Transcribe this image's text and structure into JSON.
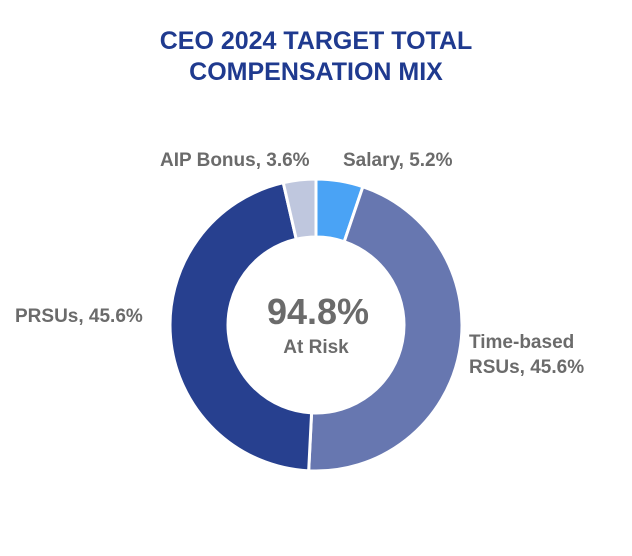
{
  "title": {
    "line1": "CEO 2024 TARGET TOTAL",
    "line2": "COMPENSATION MIX"
  },
  "center": {
    "value": "94.8%",
    "label": "At Risk"
  },
  "colors": {
    "title": "#1f3a8f",
    "label": "#6b6b6b"
  },
  "chart_data": {
    "type": "pie",
    "donut": true,
    "title": "CEO 2024 TARGET TOTAL COMPENSATION MIX",
    "categories": [
      "Salary",
      "Time-based RSUs",
      "PRSUs",
      "AIP Bonus"
    ],
    "values": [
      5.2,
      45.6,
      45.6,
      3.6
    ],
    "colors": [
      "#4aa3f5",
      "#6777b0",
      "#27408f",
      "#bfc7de"
    ],
    "labels": [
      "Salary, 5.2%",
      "Time-based RSUs, 45.6%",
      "PRSUs, 45.6%",
      "AIP Bonus, 3.6%"
    ],
    "label_lines": {
      "salary": "Salary, 5.2%",
      "rsus_line1": "Time-based",
      "rsus_line2": "RSUs, 45.6%",
      "prsus": "PRSUs, 45.6%",
      "aip": "AIP Bonus, 3.6%"
    }
  }
}
